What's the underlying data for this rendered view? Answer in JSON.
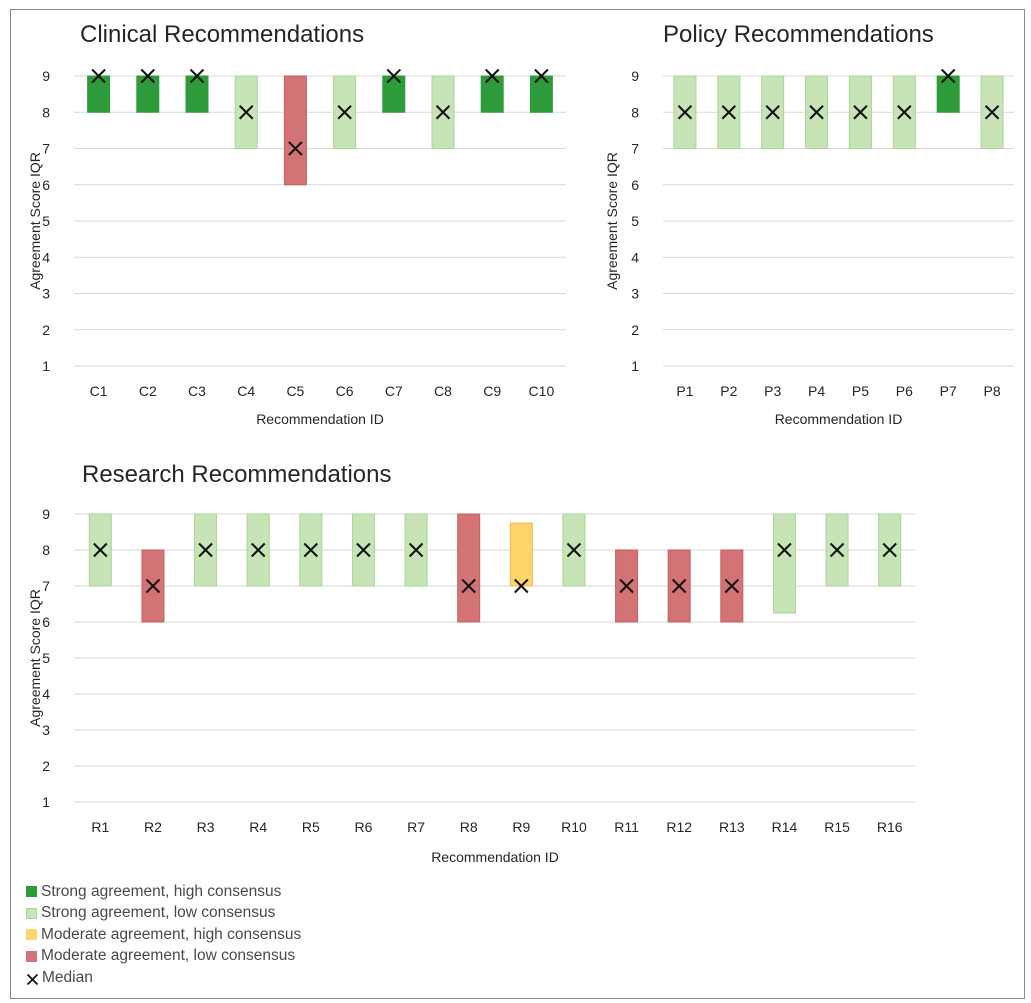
{
  "legend": {
    "items": [
      {
        "key": "shc",
        "label": "Strong agreement, high consensus"
      },
      {
        "key": "slc",
        "label": "Strong agreement, low consensus"
      },
      {
        "key": "mhc",
        "label": "Moderate agreement, high consensus"
      },
      {
        "key": "mlc",
        "label": "Moderate agreement, low consensus"
      },
      {
        "key": "median",
        "label": "Median"
      }
    ]
  },
  "colors": {
    "shc": "#2e9b3a",
    "slc": "#c6e4b6",
    "slc_stroke": "#a9d596",
    "mhc": "#fdd56a",
    "mhc_stroke": "#e8bd4a",
    "mlc": "#d47375",
    "mlc_stroke": "#c65e60",
    "grid": "#d9d9d9",
    "median": "#111111"
  },
  "chart_data": [
    {
      "id": "clinical",
      "type": "bar",
      "title": "Clinical Recommendations",
      "xlabel": "Recommendation ID",
      "ylabel": "Agreement Score IQR",
      "ylim": [
        1,
        9
      ],
      "yticks": [
        1,
        2,
        3,
        4,
        5,
        6,
        7,
        8,
        9
      ],
      "grid": true,
      "categories": [
        "C1",
        "C2",
        "C3",
        "C4",
        "C5",
        "C6",
        "C7",
        "C8",
        "C9",
        "C10"
      ],
      "iqr_low": [
        8,
        8,
        8,
        7,
        6,
        7,
        8,
        7,
        8,
        8
      ],
      "iqr_high": [
        9,
        9,
        9,
        9,
        9,
        9,
        9,
        9,
        9,
        9
      ],
      "median": [
        9,
        9,
        9,
        8,
        7,
        8,
        9,
        8,
        9,
        9
      ],
      "category_class": [
        "shc",
        "shc",
        "shc",
        "slc",
        "mlc",
        "slc",
        "shc",
        "slc",
        "shc",
        "shc"
      ]
    },
    {
      "id": "policy",
      "type": "bar",
      "title": "Policy Recommendations",
      "xlabel": "Recommendation ID",
      "ylabel": "Agreement Score IQR",
      "ylim": [
        1,
        9
      ],
      "yticks": [
        1,
        2,
        3,
        4,
        5,
        6,
        7,
        8,
        9
      ],
      "grid": true,
      "categories": [
        "P1",
        "P2",
        "P3",
        "P4",
        "P5",
        "P6",
        "P7",
        "P8"
      ],
      "iqr_low": [
        7,
        7,
        7,
        7,
        7,
        7,
        8,
        7
      ],
      "iqr_high": [
        9,
        9,
        9,
        9,
        9,
        9,
        9,
        9
      ],
      "median": [
        8,
        8,
        8,
        8,
        8,
        8,
        9,
        8
      ],
      "category_class": [
        "slc",
        "slc",
        "slc",
        "slc",
        "slc",
        "slc",
        "shc",
        "slc"
      ]
    },
    {
      "id": "research",
      "type": "bar",
      "title": "Research Recommendations",
      "xlabel": "Recommendation ID",
      "ylabel": "Agreement Score IQR",
      "ylim": [
        1,
        9
      ],
      "yticks": [
        1,
        2,
        3,
        4,
        5,
        6,
        7,
        8,
        9
      ],
      "grid": true,
      "categories": [
        "R1",
        "R2",
        "R3",
        "R4",
        "R5",
        "R6",
        "R7",
        "R8",
        "R9",
        "R10",
        "R11",
        "R12",
        "R13",
        "R14",
        "R15",
        "R16"
      ],
      "iqr_low": [
        7,
        6,
        7,
        7,
        7,
        7,
        7,
        6,
        7,
        7,
        6,
        6,
        6,
        6.25,
        7,
        7
      ],
      "iqr_high": [
        9,
        8,
        9,
        9,
        9,
        9,
        9,
        9,
        8.75,
        9,
        8,
        8,
        8,
        9,
        9,
        9
      ],
      "median": [
        8,
        7,
        8,
        8,
        8,
        8,
        8,
        7,
        7,
        8,
        7,
        7,
        7,
        8,
        8,
        8
      ],
      "category_class": [
        "slc",
        "mlc",
        "slc",
        "slc",
        "slc",
        "slc",
        "slc",
        "mlc",
        "mhc",
        "slc",
        "mlc",
        "mlc",
        "mlc",
        "slc",
        "slc",
        "slc"
      ]
    }
  ]
}
